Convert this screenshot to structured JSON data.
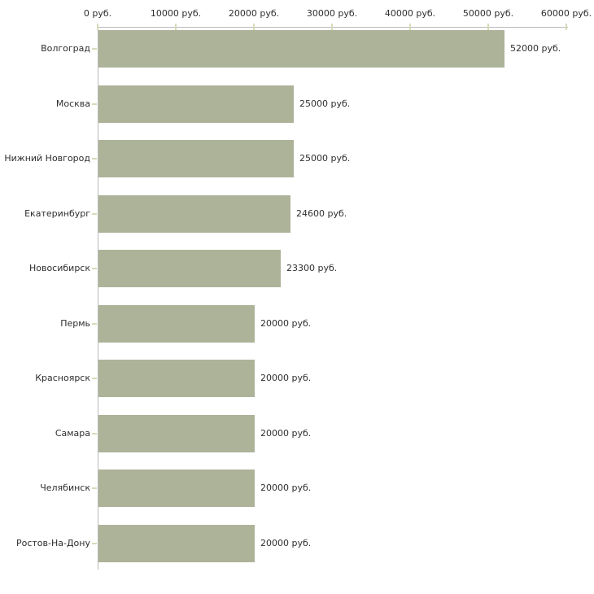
{
  "chart": {
    "background_color": "#ffffff",
    "bar_color": "#adb399",
    "axis_line_color": "#b9b9b9",
    "tick_color": "#d8dab8",
    "text_color": "#2e2e2e"
  },
  "chart_data": {
    "type": "bar",
    "orientation": "horizontal",
    "title": "",
    "xlabel": "",
    "ylabel": "",
    "grid": false,
    "legend": false,
    "categories": [
      "Волгоград",
      "Москва",
      "Нижний Новгород",
      "Екатеринбург",
      "Новосибирск",
      "Пермь",
      "Красноярск",
      "Самара",
      "Челябинск",
      "Ростов-На-Дону"
    ],
    "values": [
      52000,
      25000,
      25000,
      24600,
      23300,
      20000,
      20000,
      20000,
      20000,
      20000
    ],
    "value_labels": [
      "52000 руб.",
      "25000 руб.",
      "25000 руб.",
      "24600 руб.",
      "23300 руб.",
      "20000 руб.",
      "20000 руб.",
      "20000 руб.",
      "20000 руб.",
      "20000 руб."
    ],
    "x_axis": {
      "position": "top",
      "min": 0,
      "max": 60000,
      "unit": "руб.",
      "tick_values": [
        0,
        10000,
        20000,
        30000,
        40000,
        50000,
        60000
      ],
      "tick_labels": [
        "0 руб.",
        "10000 руб.",
        "20000 руб.",
        "30000 руб.",
        "40000 руб.",
        "50000 руб.",
        "60000 руб."
      ]
    }
  }
}
